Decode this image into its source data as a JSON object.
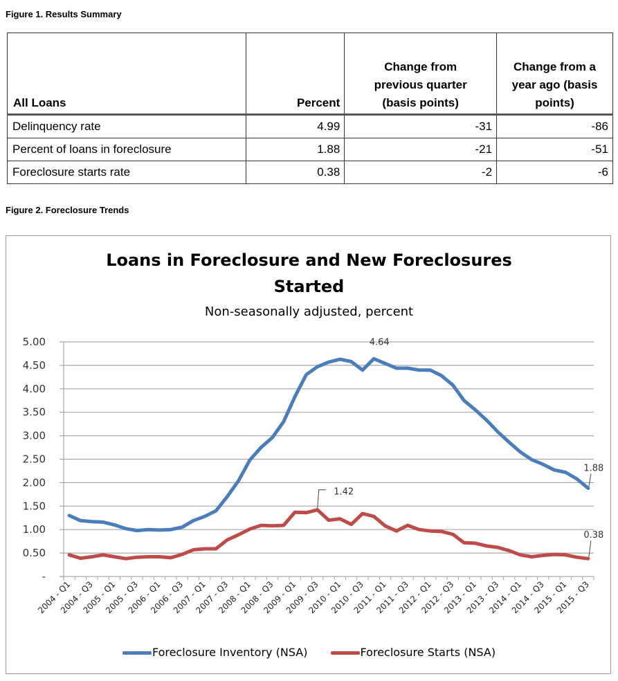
{
  "figure1": {
    "caption": "Figure 1. Results Summary",
    "headers": [
      "All Loans",
      "Percent",
      "Change from previous quarter (basis points)",
      "Change from a year ago (basis points)"
    ],
    "rows": [
      {
        "label": "Delinquency rate",
        "percent": "4.99",
        "qoq": "-31",
        "yoy": "-86"
      },
      {
        "label": "Percent of loans in foreclosure",
        "percent": "1.88",
        "qoq": "-21",
        "yoy": "-51"
      },
      {
        "label": "Foreclosure starts rate",
        "percent": "0.38",
        "qoq": "-2",
        "yoy": "-6"
      }
    ]
  },
  "figure2": {
    "caption": "Figure 2. Foreclosure Trends",
    "title_line1": "Loans in Foreclosure and New Foreclosures",
    "title_line2": "Started",
    "subtitle": "Non-seasonally adjusted, percent",
    "colors": {
      "inventory": "#4a7ebb",
      "starts": "#be4b48",
      "grid": "#a6a6a6"
    }
  },
  "chart_data": {
    "type": "line",
    "title": "Loans in Foreclosure and New Foreclosures Started",
    "subtitle": "Non-seasonally adjusted, percent",
    "xlabel": "",
    "ylabel": "",
    "ylim": [
      0,
      5
    ],
    "yticks": [
      "-",
      "0.50",
      "1.00",
      "1.50",
      "2.00",
      "2.50",
      "3.00",
      "3.50",
      "4.00",
      "4.50",
      "5.00"
    ],
    "grid": true,
    "legend_position": "bottom",
    "x_tick_labels": [
      "2004 - Q1",
      "2004 - Q3",
      "2005 - Q1",
      "2005 - Q3",
      "2006 - Q1",
      "2006 - Q3",
      "2007 - Q1",
      "2007 - Q3",
      "2008 - Q1",
      "2008 - Q3",
      "2009 - Q1",
      "2009 - Q3",
      "2010 - Q1",
      "2010 - Q3",
      "2011 - Q1",
      "2011 - Q3",
      "2012 - Q1",
      "2012 - Q3",
      "2013 - Q1",
      "2013 - Q3",
      "2014 - Q1",
      "2014 - Q3",
      "2015 - Q1",
      "2015 - Q3"
    ],
    "x": [
      "2004 - Q1",
      "2004 - Q2",
      "2004 - Q3",
      "2004 - Q4",
      "2005 - Q1",
      "2005 - Q2",
      "2005 - Q3",
      "2005 - Q4",
      "2006 - Q1",
      "2006 - Q2",
      "2006 - Q3",
      "2006 - Q4",
      "2007 - Q1",
      "2007 - Q2",
      "2007 - Q3",
      "2007 - Q4",
      "2008 - Q1",
      "2008 - Q2",
      "2008 - Q3",
      "2008 - Q4",
      "2009 - Q1",
      "2009 - Q2",
      "2009 - Q3",
      "2009 - Q4",
      "2010 - Q1",
      "2010 - Q2",
      "2010 - Q3",
      "2010 - Q4",
      "2011 - Q1",
      "2011 - Q2",
      "2011 - Q3",
      "2011 - Q4",
      "2012 - Q1",
      "2012 - Q2",
      "2012 - Q3",
      "2012 - Q4",
      "2013 - Q1",
      "2013 - Q2",
      "2013 - Q3",
      "2013 - Q4",
      "2014 - Q1",
      "2014 - Q2",
      "2014 - Q3",
      "2014 - Q4",
      "2015 - Q1",
      "2015 - Q2",
      "2015 - Q3"
    ],
    "series": [
      {
        "name": "Foreclosure Inventory (NSA)",
        "color": "#4a7ebb",
        "values": [
          1.3,
          1.19,
          1.17,
          1.16,
          1.1,
          1.02,
          0.98,
          1.0,
          0.99,
          1.0,
          1.05,
          1.19,
          1.28,
          1.4,
          1.7,
          2.04,
          2.48,
          2.75,
          2.96,
          3.3,
          3.83,
          4.3,
          4.47,
          4.57,
          4.63,
          4.58,
          4.4,
          4.64,
          4.54,
          4.44,
          4.44,
          4.4,
          4.4,
          4.28,
          4.08,
          3.75,
          3.55,
          3.33,
          3.08,
          2.86,
          2.65,
          2.49,
          2.39,
          2.27,
          2.22,
          2.08,
          1.88
        ]
      },
      {
        "name": "Foreclosure Starts (NSA)",
        "color": "#be4b48",
        "values": [
          0.46,
          0.39,
          0.42,
          0.46,
          0.42,
          0.38,
          0.41,
          0.42,
          0.42,
          0.4,
          0.47,
          0.57,
          0.59,
          0.59,
          0.78,
          0.89,
          1.01,
          1.09,
          1.08,
          1.09,
          1.37,
          1.36,
          1.42,
          1.2,
          1.23,
          1.11,
          1.34,
          1.28,
          1.08,
          0.97,
          1.09,
          1.0,
          0.97,
          0.96,
          0.9,
          0.72,
          0.71,
          0.65,
          0.62,
          0.55,
          0.46,
          0.42,
          0.45,
          0.47,
          0.46,
          0.41,
          0.38
        ]
      }
    ],
    "annotations": [
      {
        "series": 0,
        "index": 27,
        "text": "4.64"
      },
      {
        "series": 0,
        "index": 46,
        "text": "1.88"
      },
      {
        "series": 1,
        "index": 22,
        "text": "1.42"
      },
      {
        "series": 1,
        "index": 46,
        "text": "0.38"
      }
    ]
  }
}
